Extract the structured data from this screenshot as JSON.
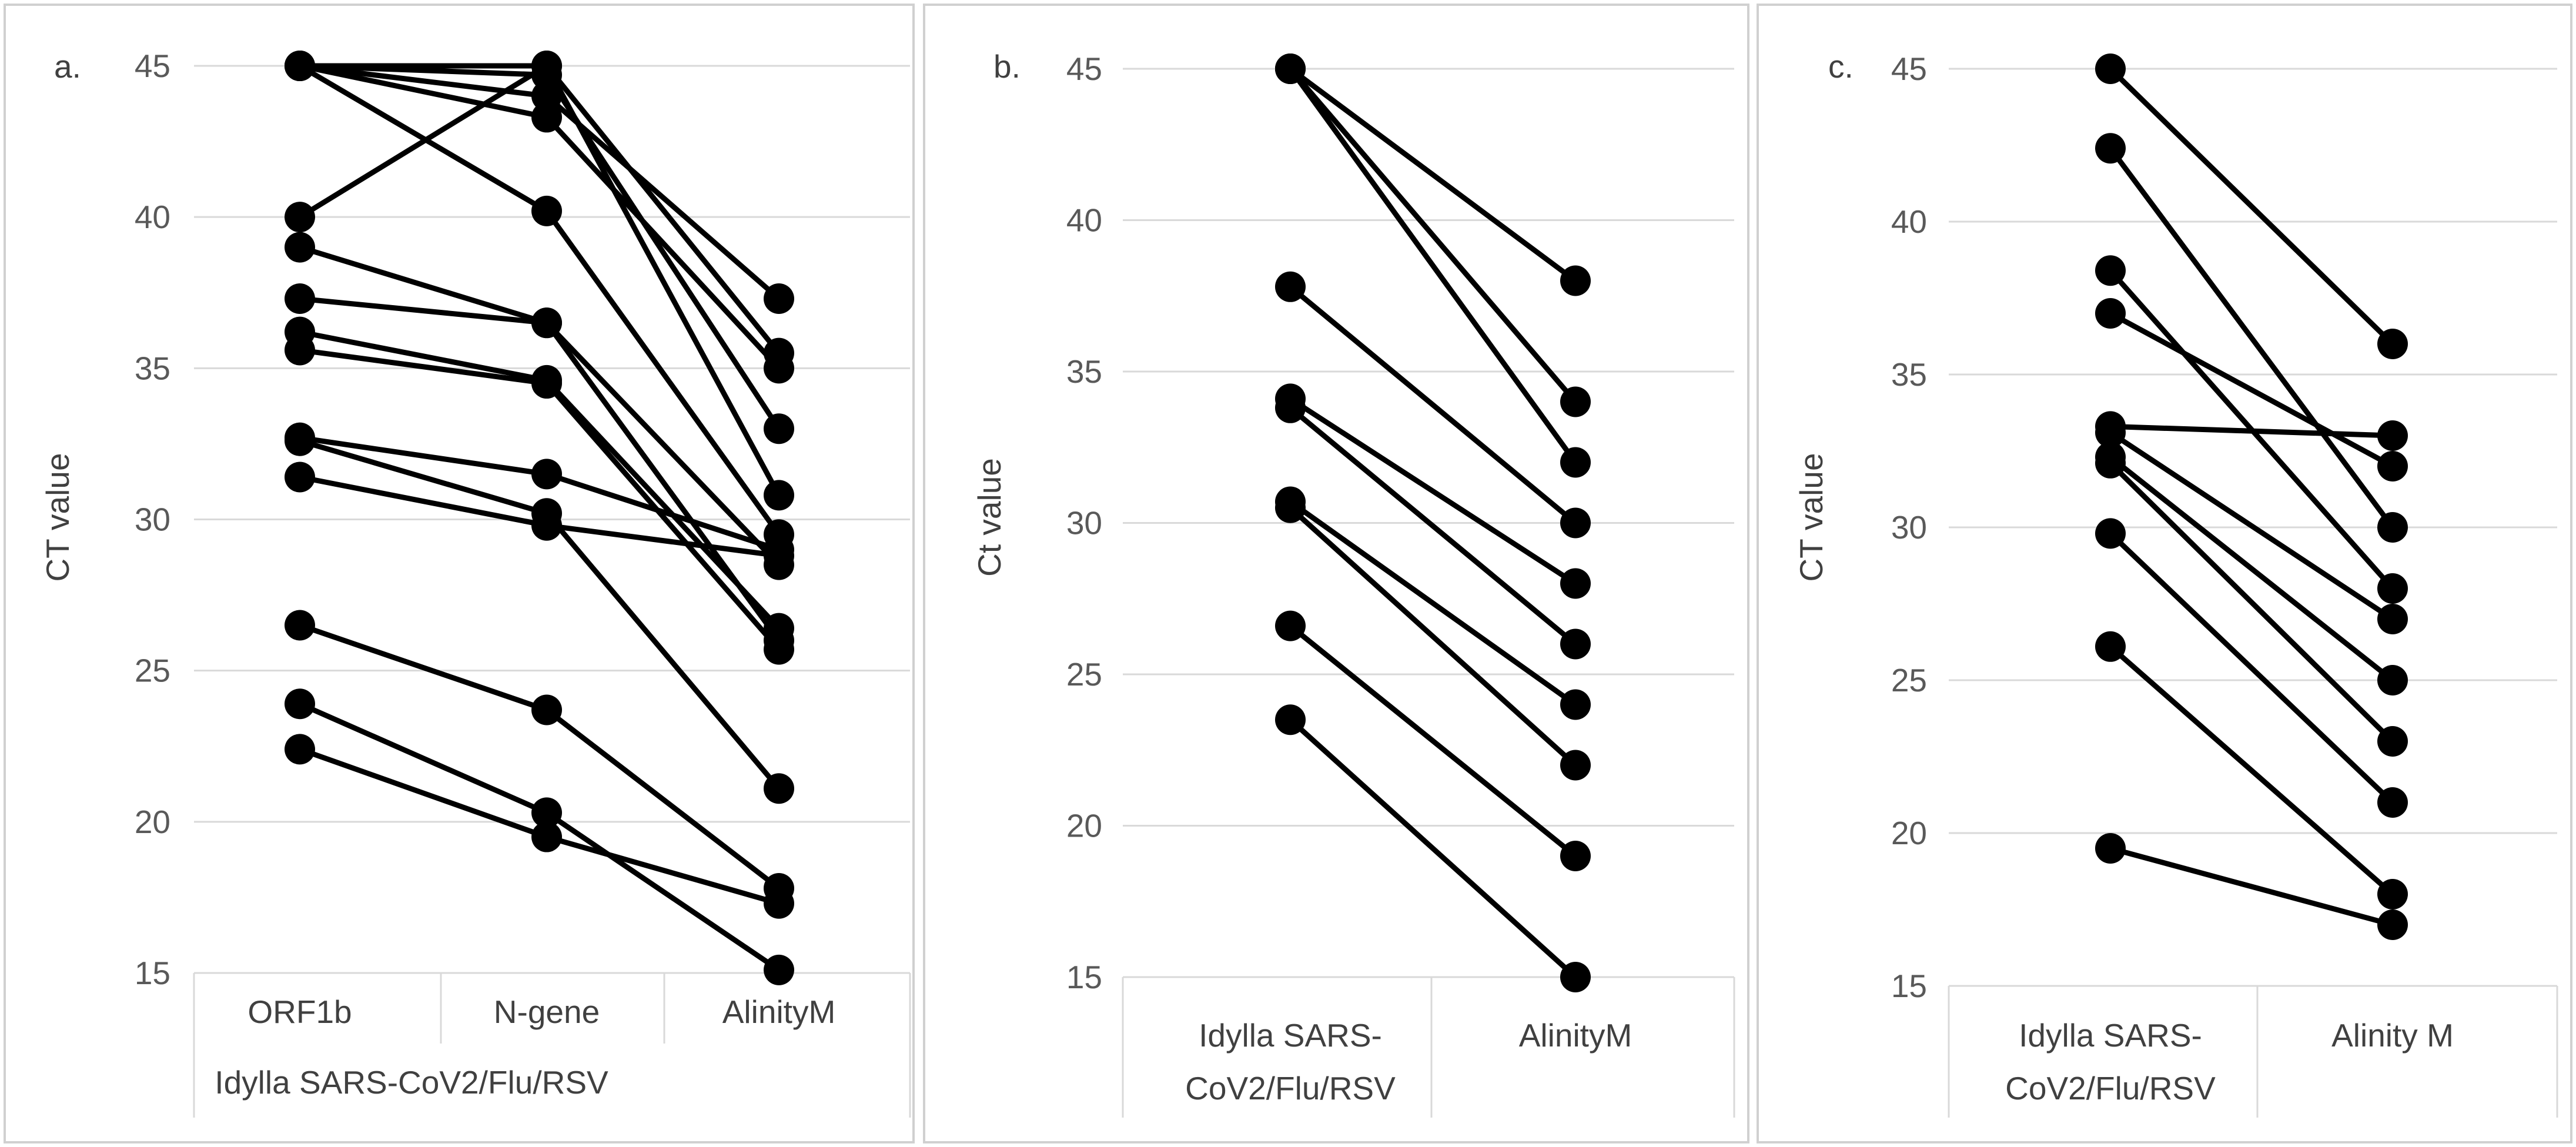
{
  "chart_data": [
    {
      "type": "line",
      "panel_label": "a.",
      "ylabel": "CT value",
      "ylim": [
        15,
        45
      ],
      "yticks": [
        15,
        20,
        25,
        30,
        35,
        40,
        45
      ],
      "grid": true,
      "categories": [
        "ORF1b",
        "N-gene",
        "AlinityM"
      ],
      "group_label": "Idylla SARS-CoV2/Flu/RSV",
      "series": [
        {
          "values": [
            45,
            45,
            35.5
          ]
        },
        {
          "values": [
            45,
            44,
            37.3
          ]
        },
        {
          "values": [
            45,
            43.3,
            35
          ]
        },
        {
          "values": [
            45,
            40.2,
            29.5
          ]
        },
        {
          "values": [
            45,
            44.7,
            33
          ]
        },
        {
          "values": [
            40,
            45,
            30.8
          ]
        },
        {
          "values": [
            39,
            36.5,
            28.5
          ]
        },
        {
          "values": [
            37.3,
            36.5,
            26
          ]
        },
        {
          "values": [
            36.2,
            34.6,
            26.4
          ]
        },
        {
          "values": [
            35.6,
            34.5,
            25.7
          ]
        },
        {
          "values": [
            32.7,
            31.5,
            29
          ]
        },
        {
          "values": [
            32.6,
            30.2,
            21.1
          ]
        },
        {
          "values": [
            31.4,
            29.8,
            28.8
          ]
        },
        {
          "values": [
            26.5,
            23.7,
            17.8
          ]
        },
        {
          "values": [
            23.9,
            20.3,
            15.1
          ]
        },
        {
          "values": [
            22.4,
            19.5,
            17.3
          ]
        }
      ]
    },
    {
      "type": "line",
      "panel_label": "b.",
      "ylabel": "Ct value",
      "ylim": [
        15,
        45
      ],
      "yticks": [
        15,
        20,
        25,
        30,
        35,
        40,
        45
      ],
      "grid": true,
      "categories": [
        "Idylla SARS-CoV2/Flu/RSV",
        "AlinityM"
      ],
      "series": [
        {
          "values": [
            45,
            38
          ]
        },
        {
          "values": [
            45,
            34
          ]
        },
        {
          "values": [
            45,
            32
          ]
        },
        {
          "values": [
            37.8,
            30
          ]
        },
        {
          "values": [
            34.1,
            28
          ]
        },
        {
          "values": [
            33.8,
            26
          ]
        },
        {
          "values": [
            30.7,
            24
          ]
        },
        {
          "values": [
            30.5,
            22
          ]
        },
        {
          "values": [
            26.6,
            19
          ]
        },
        {
          "values": [
            23.5,
            15
          ]
        }
      ]
    },
    {
      "type": "line",
      "panel_label": "c.",
      "ylabel": "CT value",
      "ylim": [
        15,
        45
      ],
      "yticks": [
        15,
        20,
        25,
        30,
        35,
        40,
        45
      ],
      "grid": true,
      "categories": [
        "Idylla SARS-CoV2/Flu/RSV",
        "Alinity M"
      ],
      "series": [
        {
          "values": [
            45,
            36
          ]
        },
        {
          "values": [
            42.4,
            30
          ]
        },
        {
          "values": [
            38.4,
            28
          ]
        },
        {
          "values": [
            37,
            32
          ]
        },
        {
          "values": [
            33.3,
            33
          ]
        },
        {
          "values": [
            33.1,
            27
          ]
        },
        {
          "values": [
            32.3,
            25
          ]
        },
        {
          "values": [
            32.1,
            23
          ]
        },
        {
          "values": [
            29.8,
            21
          ]
        },
        {
          "values": [
            26.1,
            18
          ]
        },
        {
          "values": [
            19.5,
            17
          ]
        }
      ]
    }
  ]
}
